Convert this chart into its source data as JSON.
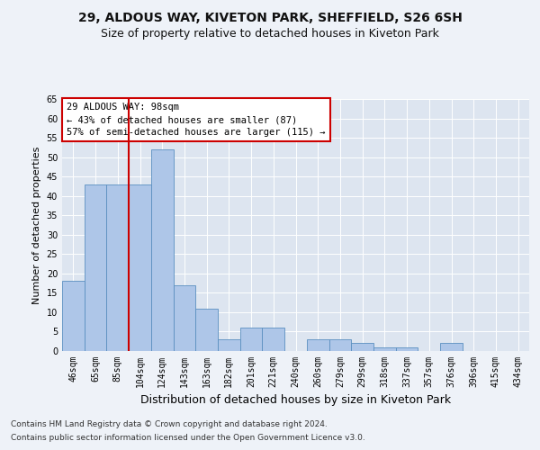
{
  "title1": "29, ALDOUS WAY, KIVETON PARK, SHEFFIELD, S26 6SH",
  "title2": "Size of property relative to detached houses in Kiveton Park",
  "xlabel": "Distribution of detached houses by size in Kiveton Park",
  "ylabel": "Number of detached properties",
  "categories": [
    "46sqm",
    "65sqm",
    "85sqm",
    "104sqm",
    "124sqm",
    "143sqm",
    "163sqm",
    "182sqm",
    "201sqm",
    "221sqm",
    "240sqm",
    "260sqm",
    "279sqm",
    "299sqm",
    "318sqm",
    "337sqm",
    "357sqm",
    "376sqm",
    "396sqm",
    "415sqm",
    "434sqm"
  ],
  "values": [
    18,
    43,
    43,
    43,
    52,
    17,
    11,
    3,
    6,
    6,
    0,
    3,
    3,
    2,
    1,
    1,
    0,
    2,
    0,
    0,
    0
  ],
  "bar_color": "#aec6e8",
  "bar_edge_color": "#5a8fc0",
  "vline_color": "#cc0000",
  "annotation_title": "29 ALDOUS WAY: 98sqm",
  "annotation_line1": "← 43% of detached houses are smaller (87)",
  "annotation_line2": "57% of semi-detached houses are larger (115) →",
  "annotation_box_color": "#ffffff",
  "annotation_box_edge": "#cc0000",
  "ylim": [
    0,
    65
  ],
  "yticks": [
    0,
    5,
    10,
    15,
    20,
    25,
    30,
    35,
    40,
    45,
    50,
    55,
    60,
    65
  ],
  "footer1": "Contains HM Land Registry data © Crown copyright and database right 2024.",
  "footer2": "Contains public sector information licensed under the Open Government Licence v3.0.",
  "bg_color": "#eef2f8",
  "plot_bg_color": "#dde5f0",
  "title1_fontsize": 10,
  "title2_fontsize": 9,
  "xlabel_fontsize": 9,
  "ylabel_fontsize": 8,
  "tick_fontsize": 7,
  "footer_fontsize": 6.5
}
